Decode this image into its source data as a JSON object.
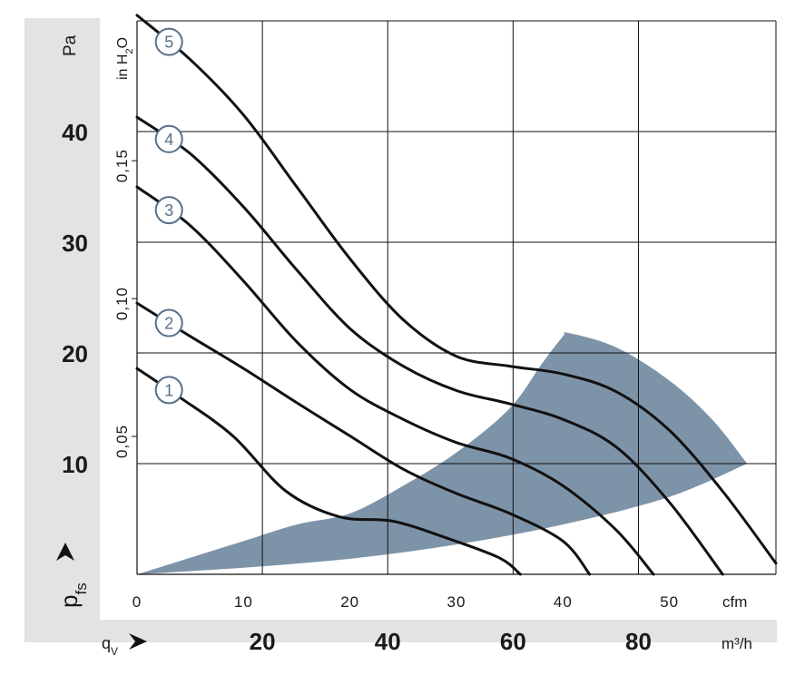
{
  "chart_data": {
    "type": "line",
    "title": "",
    "series": [
      {
        "name": "1",
        "points": [
          [
            0,
            18.6
          ],
          [
            4,
            16.0
          ],
          [
            9,
            12.5
          ],
          [
            14,
            7.5
          ],
          [
            19,
            5.2
          ],
          [
            24,
            4.8
          ],
          [
            29,
            3.3
          ],
          [
            34,
            1.5
          ],
          [
            36,
            0.0
          ]
        ]
      },
      {
        "name": "2",
        "points": [
          [
            0,
            24.5
          ],
          [
            5,
            21.5
          ],
          [
            10,
            18.6
          ],
          [
            15,
            15.5
          ],
          [
            20,
            12.5
          ],
          [
            25,
            9.5
          ],
          [
            30,
            7.3
          ],
          [
            35,
            5.5
          ],
          [
            40,
            3.0
          ],
          [
            42.5,
            0.0
          ]
        ]
      },
      {
        "name": "3",
        "points": [
          [
            0,
            35.0
          ],
          [
            5,
            31.5
          ],
          [
            10,
            26.5
          ],
          [
            15,
            21.0
          ],
          [
            20,
            16.7
          ],
          [
            25,
            14.0
          ],
          [
            30,
            11.9
          ],
          [
            35,
            10.5
          ],
          [
            40,
            8.0
          ],
          [
            45,
            4.0
          ],
          [
            48.5,
            0.0
          ]
        ]
      },
      {
        "name": "4",
        "points": [
          [
            0,
            41.3
          ],
          [
            5,
            38.0
          ],
          [
            10,
            33.2
          ],
          [
            15,
            27.5
          ],
          [
            20,
            22.2
          ],
          [
            25,
            18.8
          ],
          [
            30,
            16.6
          ],
          [
            35,
            15.4
          ],
          [
            40,
            14.0
          ],
          [
            45,
            11.5
          ],
          [
            50,
            6.5
          ],
          [
            55,
            0.0
          ]
        ]
      },
      {
        "name": "5",
        "points": [
          [
            0,
            50.5
          ],
          [
            5,
            46.5
          ],
          [
            10,
            41.5
          ],
          [
            15,
            35.0
          ],
          [
            20,
            28.5
          ],
          [
            25,
            23.0
          ],
          [
            30,
            19.7
          ],
          [
            35,
            18.8
          ],
          [
            40,
            18.1
          ],
          [
            45,
            16.5
          ],
          [
            50,
            13.0
          ],
          [
            55,
            7.5
          ],
          [
            60,
            1.0
          ]
        ]
      }
    ],
    "shaded_region": {
      "upper": [
        [
          0,
          0.0
        ],
        [
          5,
          1.5
        ],
        [
          10,
          3.0
        ],
        [
          15,
          4.5
        ],
        [
          20,
          5.5
        ],
        [
          25,
          8.0
        ],
        [
          30,
          11.0
        ],
        [
          35,
          15.0
        ],
        [
          38,
          19.0
        ],
        [
          40,
          21.5
        ],
        [
          40.5,
          21.8
        ],
        [
          45,
          20.5
        ],
        [
          50,
          17.5
        ],
        [
          54,
          14.0
        ],
        [
          57.3,
          10.0
        ]
      ],
      "lower": [
        [
          57.3,
          10.0
        ],
        [
          50,
          7.0
        ],
        [
          40,
          4.5
        ],
        [
          30,
          2.7
        ],
        [
          20,
          1.4
        ],
        [
          10,
          0.6
        ],
        [
          0,
          0.0
        ]
      ],
      "color": "#7d93a8"
    },
    "x_cfm": {
      "ticks": [
        0,
        10,
        20,
        30,
        40,
        50
      ],
      "unit": "cfm",
      "range": [
        0,
        60
      ]
    },
    "x_m3h": {
      "ticks": [
        20,
        40,
        60,
        80
      ],
      "unit": "m³/h",
      "label": "qV"
    },
    "y_pa": {
      "ticks": [
        10,
        20,
        30,
        40
      ],
      "unit": "Pa",
      "label": "pfs",
      "range": [
        0,
        50
      ]
    },
    "y_inh2o": {
      "ticks": [
        "0,05",
        "0,10",
        "0,15"
      ],
      "unit": "in H2O"
    },
    "grid": true,
    "colors": {
      "curve": "#111111",
      "region": "#7d93a8",
      "marker_text": "#56708a",
      "axis_band": "#e3e3e3"
    }
  }
}
